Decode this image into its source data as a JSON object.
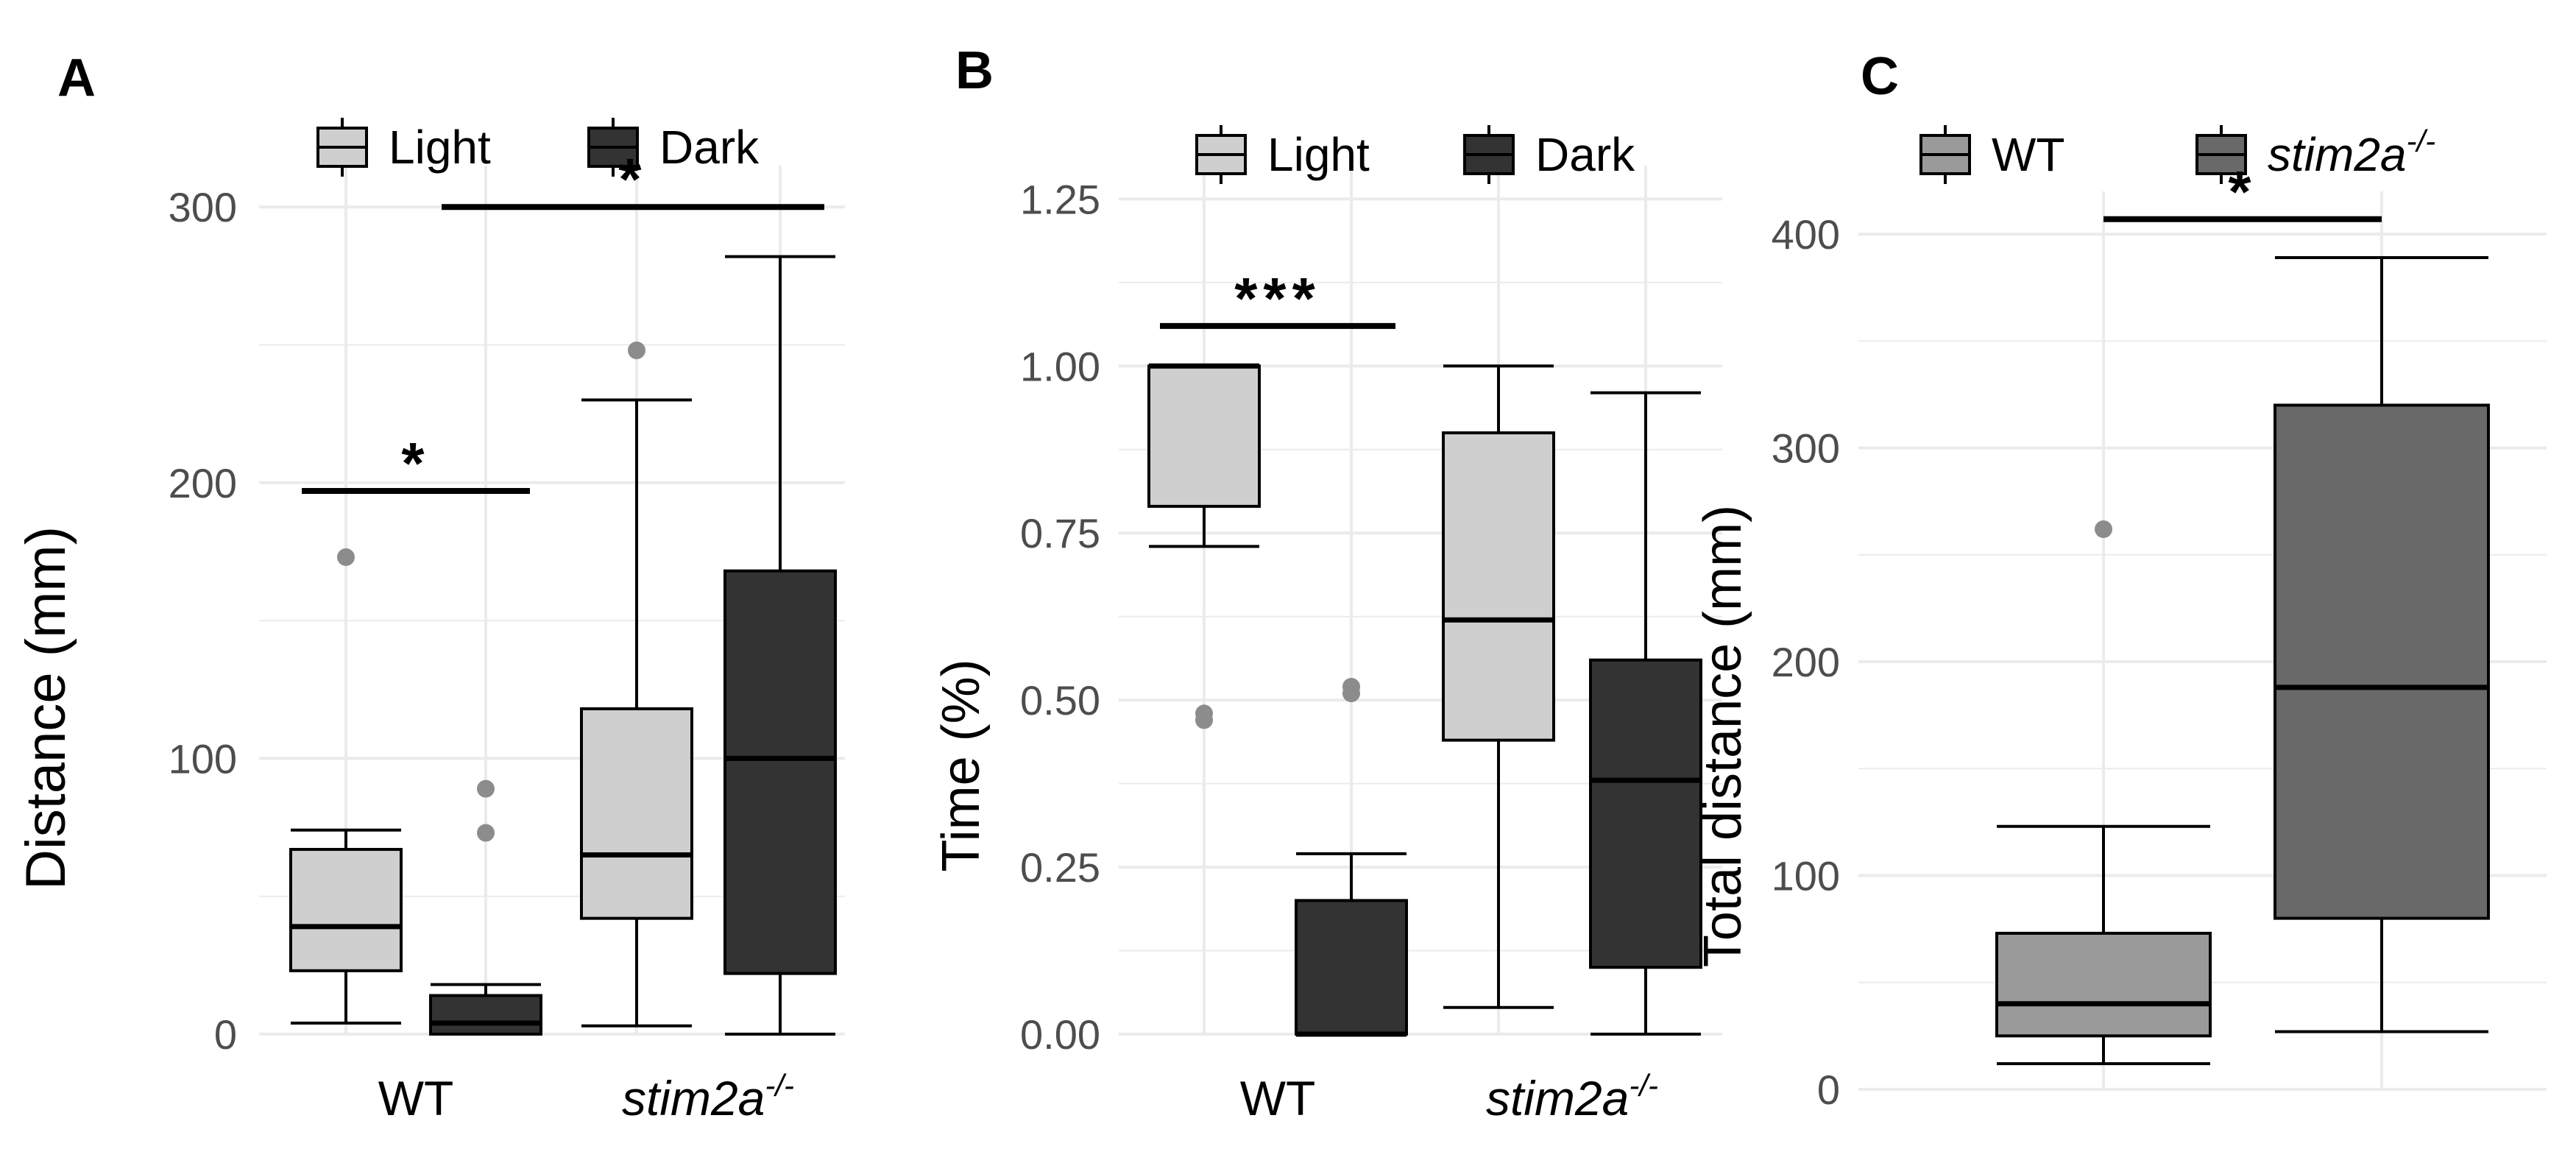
{
  "colors": {
    "light": "#cfcfcf",
    "dark": "#333333",
    "wt": "#9a9a9a",
    "stim2a": "#696969",
    "outlier": "#8c8c8c",
    "grid": "#ebebeb",
    "axis_text": "#4d4d4d",
    "stroke": "#000000"
  },
  "chart_data": [
    {
      "panel": "A",
      "type": "boxplot",
      "ylabel": "Distance (mm)",
      "ylim": [
        0,
        315
      ],
      "yticks": [
        0,
        100,
        200,
        300
      ],
      "yticks_label": [
        "0",
        "100",
        "200",
        "300"
      ],
      "categories": [
        "WT",
        "stim2a"
      ],
      "category_labels": [
        "WT",
        "stim2a"
      ],
      "category_superscripts": [
        "",
        "-/-"
      ],
      "legend": [
        {
          "label": "Light",
          "color_key": "light"
        },
        {
          "label": "Dark",
          "color_key": "dark"
        }
      ],
      "boxes": [
        {
          "category": "WT",
          "group": "Light",
          "whisker_low": 4,
          "q1": 23,
          "median": 39,
          "q3": 67,
          "whisker_high": 74,
          "outliers": [
            173
          ]
        },
        {
          "category": "WT",
          "group": "Dark",
          "whisker_low": 0,
          "q1": 0,
          "median": 4,
          "q3": 14,
          "whisker_high": 18,
          "outliers": [
            89,
            73
          ]
        },
        {
          "category": "stim2a",
          "group": "Light",
          "whisker_low": 3,
          "q1": 42,
          "median": 65,
          "q3": 118,
          "whisker_high": 230,
          "outliers": [
            248
          ]
        },
        {
          "category": "stim2a",
          "group": "Dark",
          "whisker_low": 0,
          "q1": 22,
          "median": 100,
          "q3": 168,
          "whisker_high": 282,
          "outliers": []
        }
      ],
      "annotations": [
        {
          "label": "*",
          "from_box": 0,
          "to_box": 1,
          "y": 197
        },
        {
          "label": "*",
          "from_box": 1,
          "to_box": 3,
          "y": 300
        }
      ]
    },
    {
      "panel": "B",
      "type": "boxplot",
      "ylabel": "Time (%)",
      "ylim": [
        0,
        1.3
      ],
      "yticks": [
        0,
        0.25,
        0.5,
        0.75,
        1.0,
        1.25
      ],
      "yticks_label": [
        "0.00",
        "0.25",
        "0.50",
        "0.75",
        "1.00",
        "1.25"
      ],
      "categories": [
        "WT",
        "stim2a"
      ],
      "category_labels": [
        "WT",
        "stim2a"
      ],
      "category_superscripts": [
        "",
        "-/-"
      ],
      "legend": [
        {
          "label": "Light",
          "color_key": "light"
        },
        {
          "label": "Dark",
          "color_key": "dark"
        }
      ],
      "boxes": [
        {
          "category": "WT",
          "group": "Light",
          "whisker_low": 0.73,
          "q1": 0.79,
          "median": 1.0,
          "q3": 1.0,
          "whisker_high": 1.0,
          "outliers": [
            0.47,
            0.48
          ]
        },
        {
          "category": "WT",
          "group": "Dark",
          "whisker_low": 0.0,
          "q1": 0.0,
          "median": 0.0,
          "q3": 0.2,
          "whisker_high": 0.27,
          "outliers": [
            0.51,
            0.52
          ]
        },
        {
          "category": "stim2a",
          "group": "Light",
          "whisker_low": 0.04,
          "q1": 0.44,
          "median": 0.62,
          "q3": 0.9,
          "whisker_high": 1.0,
          "outliers": []
        },
        {
          "category": "stim2a",
          "group": "Dark",
          "whisker_low": 0.0,
          "q1": 0.1,
          "median": 0.38,
          "q3": 0.56,
          "whisker_high": 0.96,
          "outliers": []
        }
      ],
      "annotations": [
        {
          "label": "***",
          "from_box": 0,
          "to_box": 1,
          "y": 1.06
        }
      ]
    },
    {
      "panel": "C",
      "type": "boxplot",
      "ylabel": "Total distance (mm)",
      "ylim": [
        0,
        420
      ],
      "yticks": [
        0,
        100,
        200,
        300,
        400
      ],
      "yticks_label": [
        "0",
        "100",
        "200",
        "300",
        "400"
      ],
      "categories": [
        "WT",
        "stim2a"
      ],
      "category_labels": [
        "",
        ""
      ],
      "category_superscripts": [
        "",
        ""
      ],
      "legend": [
        {
          "label": "WT",
          "color_key": "wt"
        },
        {
          "label": "stim2a",
          "superscript": "-/-",
          "italic": true,
          "color_key": "stim2a"
        }
      ],
      "boxes": [
        {
          "category": "WT",
          "group": "WT",
          "whisker_low": 12,
          "q1": 25,
          "median": 40,
          "q3": 73,
          "whisker_high": 123,
          "outliers": [
            262
          ]
        },
        {
          "category": "stim2a",
          "group": "stim2a",
          "whisker_low": 27,
          "q1": 80,
          "median": 188,
          "q3": 320,
          "whisker_high": 389,
          "outliers": []
        }
      ],
      "annotations": [
        {
          "label": "*",
          "from_box": 0,
          "to_box": 1,
          "y": 407
        }
      ]
    }
  ]
}
